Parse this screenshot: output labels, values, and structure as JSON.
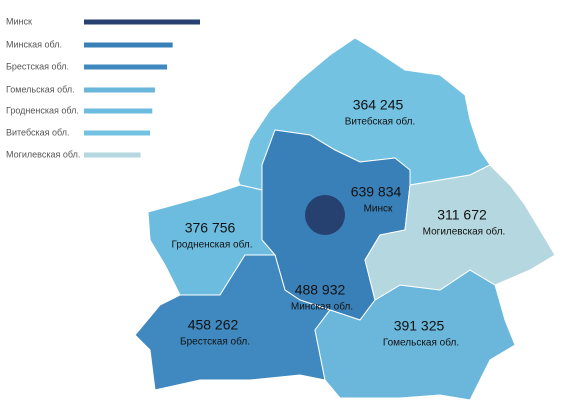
{
  "chart_data": {
    "type": "map",
    "categories": [
      "Минск",
      "Минская обл.",
      "Брестская обл.",
      "Гомельская обл.",
      "Гродненская обл.",
      "Витебская обл.",
      "Могилевская обл."
    ],
    "values": [
      639834,
      488932,
      458262,
      391325,
      376756,
      364245,
      311672
    ],
    "value_labels": [
      "639 834",
      "488 932",
      "458 262",
      "391 325",
      "376 756",
      "364 245",
      "311 672"
    ],
    "colors": [
      "#26416f",
      "#3a80b8",
      "#3f89c0",
      "#6ab7db",
      "#6cbcdf",
      "#74c2e2",
      "#b5d7df"
    ]
  }
}
